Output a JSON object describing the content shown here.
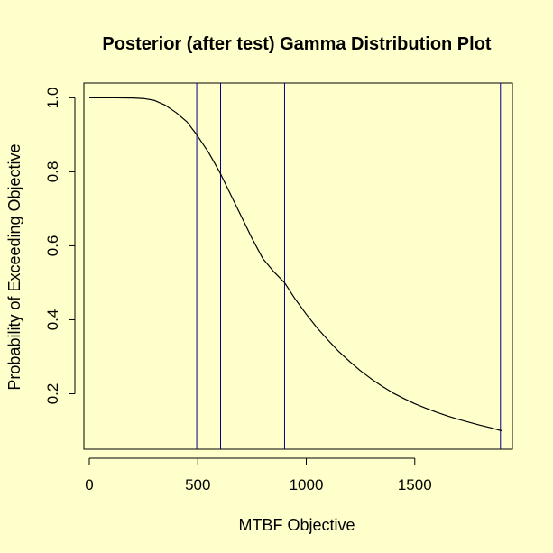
{
  "chart_data": {
    "type": "line",
    "title": "Posterior (after test) Gamma Distribution Plot",
    "xlabel": "MTBF Objective",
    "ylabel": "Probability of Exceeding Objective",
    "xlim": [
      -25,
      1950
    ],
    "ylim": [
      0.05,
      1.04
    ],
    "x_ticks": [
      0,
      500,
      1000,
      1500
    ],
    "x_tick_labels": [
      "0",
      "500",
      "1000",
      "1500"
    ],
    "y_ticks": [
      0.2,
      0.4,
      0.6,
      0.8,
      1.0
    ],
    "y_tick_labels": [
      "0.2",
      "0.4",
      "0.6",
      "0.8",
      "1.0"
    ],
    "grid": false,
    "colors": {
      "background": "#FFFFCC",
      "curve": "#000000",
      "reference_lines": "#00008B",
      "axes": "#000000"
    },
    "series": [
      {
        "x": [
          0,
          100,
          200,
          250,
          300,
          350,
          400,
          450,
          495,
          550,
          600,
          650,
          700,
          750,
          800,
          850,
          900,
          950,
          1000,
          1050,
          1100,
          1150,
          1200,
          1250,
          1300,
          1350,
          1400,
          1450,
          1500,
          1550,
          1600,
          1650,
          1700,
          1750,
          1800,
          1850,
          1900
        ],
        "y": [
          1.0,
          1.0,
          0.9995,
          0.998,
          0.993,
          0.98,
          0.96,
          0.935,
          0.9,
          0.852,
          0.8,
          0.74,
          0.68,
          0.62,
          0.565,
          0.53,
          0.5,
          0.455,
          0.415,
          0.378,
          0.345,
          0.314,
          0.287,
          0.262,
          0.24,
          0.22,
          0.202,
          0.187,
          0.173,
          0.161,
          0.15,
          0.14,
          0.131,
          0.123,
          0.115,
          0.108,
          0.1
        ]
      }
    ],
    "vertical_lines": [
      495,
      605,
      900,
      1895
    ]
  }
}
